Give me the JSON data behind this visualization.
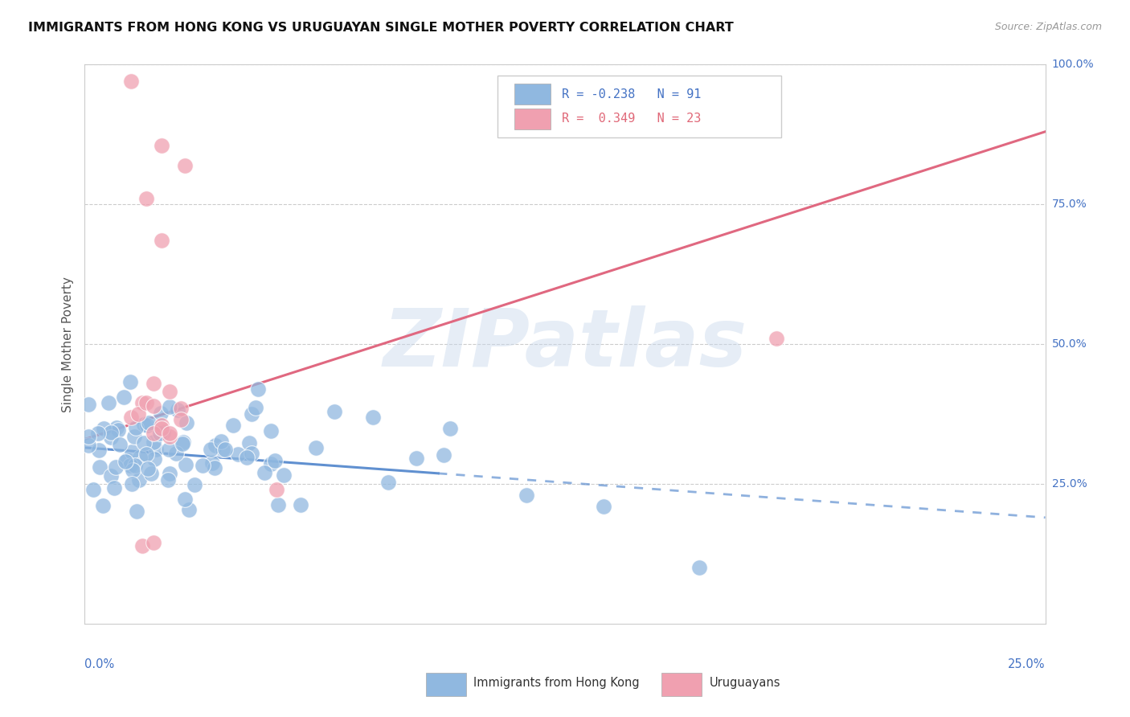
{
  "title": "IMMIGRANTS FROM HONG KONG VS URUGUAYAN SINGLE MOTHER POVERTY CORRELATION CHART",
  "source": "Source: ZipAtlas.com",
  "ylabel": "Single Mother Poverty",
  "blue_color": "#90b8e0",
  "pink_color": "#f0a0b0",
  "blue_line_color": "#6090d0",
  "pink_line_color": "#e06880",
  "watermark_text": "ZIPatlas",
  "blue_R": -0.238,
  "blue_N": 91,
  "pink_R": 0.349,
  "pink_N": 23,
  "xlim": [
    0.0,
    0.25
  ],
  "ylim": [
    0.0,
    1.0
  ],
  "ytick_positions": [
    0.25,
    0.5,
    0.75,
    1.0
  ],
  "ytick_labels": [
    "25.0%",
    "50.0%",
    "75.0%",
    "100.0%"
  ],
  "xtick_left": "0.0%",
  "xtick_right": "25.0%",
  "legend_label_blue": "Immigrants from Hong Kong",
  "legend_label_pink": "Uruguayans",
  "blue_line_x": [
    0.0,
    0.25
  ],
  "blue_line_y_solid_end": 0.09,
  "pink_line_x0": 0.0,
  "pink_line_y0": 0.33,
  "pink_line_x1": 0.25,
  "pink_line_y1": 0.88
}
